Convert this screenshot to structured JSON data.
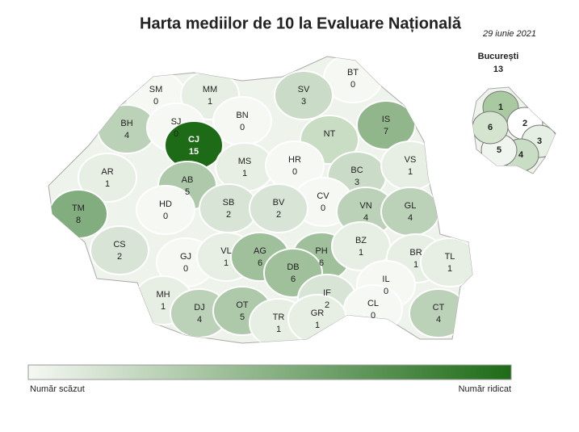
{
  "title": "Harta mediilor de 10 la Evaluare Națională",
  "date": "29 iunie 2021",
  "map": {
    "color_low": "#f5f8f3",
    "color_high": "#1e6b17",
    "regions": [
      {
        "code": "SM",
        "value": 0
      },
      {
        "code": "MM",
        "value": 1
      },
      {
        "code": "BT",
        "value": 0
      },
      {
        "code": "SV",
        "value": 3
      },
      {
        "code": "IS",
        "value": 7
      },
      {
        "code": "BH",
        "value": 4
      },
      {
        "code": "SJ",
        "value": 0
      },
      {
        "code": "BN",
        "value": 0
      },
      {
        "code": "CJ",
        "value": 15
      },
      {
        "code": "NT",
        "value": null
      },
      {
        "code": "BC",
        "value": 3
      },
      {
        "code": "VS",
        "value": 1
      },
      {
        "code": "AR",
        "value": 1
      },
      {
        "code": "MS",
        "value": 1
      },
      {
        "code": "HR",
        "value": 0
      },
      {
        "code": "AB",
        "value": 5
      },
      {
        "code": "CV",
        "value": 0
      },
      {
        "code": "TM",
        "value": 8
      },
      {
        "code": "HD",
        "value": 0
      },
      {
        "code": "SB",
        "value": 2
      },
      {
        "code": "BV",
        "value": 2
      },
      {
        "code": "VN",
        "value": 4
      },
      {
        "code": "GL",
        "value": 4
      },
      {
        "code": "CS",
        "value": 2
      },
      {
        "code": "GJ",
        "value": 0
      },
      {
        "code": "VL",
        "value": 1
      },
      {
        "code": "AG",
        "value": 6
      },
      {
        "code": "PH",
        "value": 6
      },
      {
        "code": "DB",
        "value": 6
      },
      {
        "code": "BZ",
        "value": 1
      },
      {
        "code": "BR",
        "value": 1
      },
      {
        "code": "TL",
        "value": 1
      },
      {
        "code": "MH",
        "value": 1
      },
      {
        "code": "IF",
        "value": 2
      },
      {
        "code": "IL",
        "value": 0
      },
      {
        "code": "CL",
        "value": 0
      },
      {
        "code": "DJ",
        "value": 4
      },
      {
        "code": "OT",
        "value": 5
      },
      {
        "code": "TR",
        "value": 1
      },
      {
        "code": "GR",
        "value": 1
      },
      {
        "code": "CT",
        "value": 4
      }
    ],
    "bucharest": {
      "label": "București",
      "value": 13,
      "sectors": [
        "1",
        "2",
        "3",
        "4",
        "5",
        "6"
      ]
    }
  },
  "legend": {
    "low": "Număr scăzut",
    "high": "Număr ridicat"
  }
}
